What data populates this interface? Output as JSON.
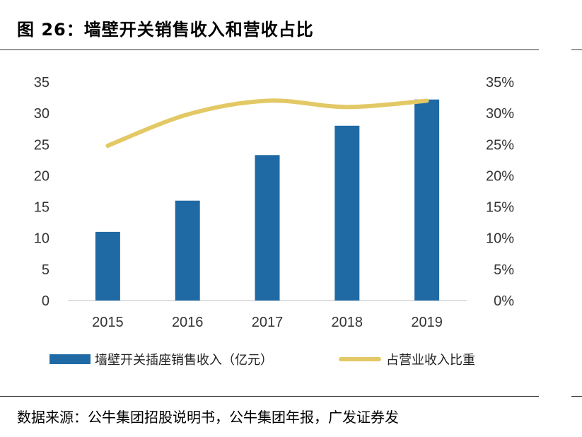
{
  "title": "图 26：墙壁开关销售收入和营收占比",
  "source": "数据来源：公牛集团招股说明书，公牛集团年报，广发证券发",
  "chart_data": {
    "type": "bar",
    "categories": [
      "2015",
      "2016",
      "2017",
      "2018",
      "2019"
    ],
    "series": [
      {
        "name": "墙壁开关插座销售收入（亿元）",
        "type": "bar",
        "axis": "left",
        "values": [
          11,
          16,
          23.3,
          28,
          32.2
        ],
        "color": "#1f6aa5"
      },
      {
        "name": "占营业收入比重",
        "type": "line",
        "axis": "right",
        "values": [
          24.8,
          29.8,
          32.0,
          31.0,
          32.0
        ],
        "color": "#e3c866"
      }
    ],
    "y_left": {
      "min": 0,
      "max": 35,
      "ticks": [
        "0",
        "5",
        "10",
        "15",
        "20",
        "25",
        "30",
        "35"
      ]
    },
    "y_right": {
      "min": 0,
      "max": 35,
      "ticks": [
        "0%",
        "5%",
        "10%",
        "15%",
        "20%",
        "25%",
        "30%",
        "35%"
      ]
    },
    "grid": false,
    "legend_position": "bottom"
  }
}
